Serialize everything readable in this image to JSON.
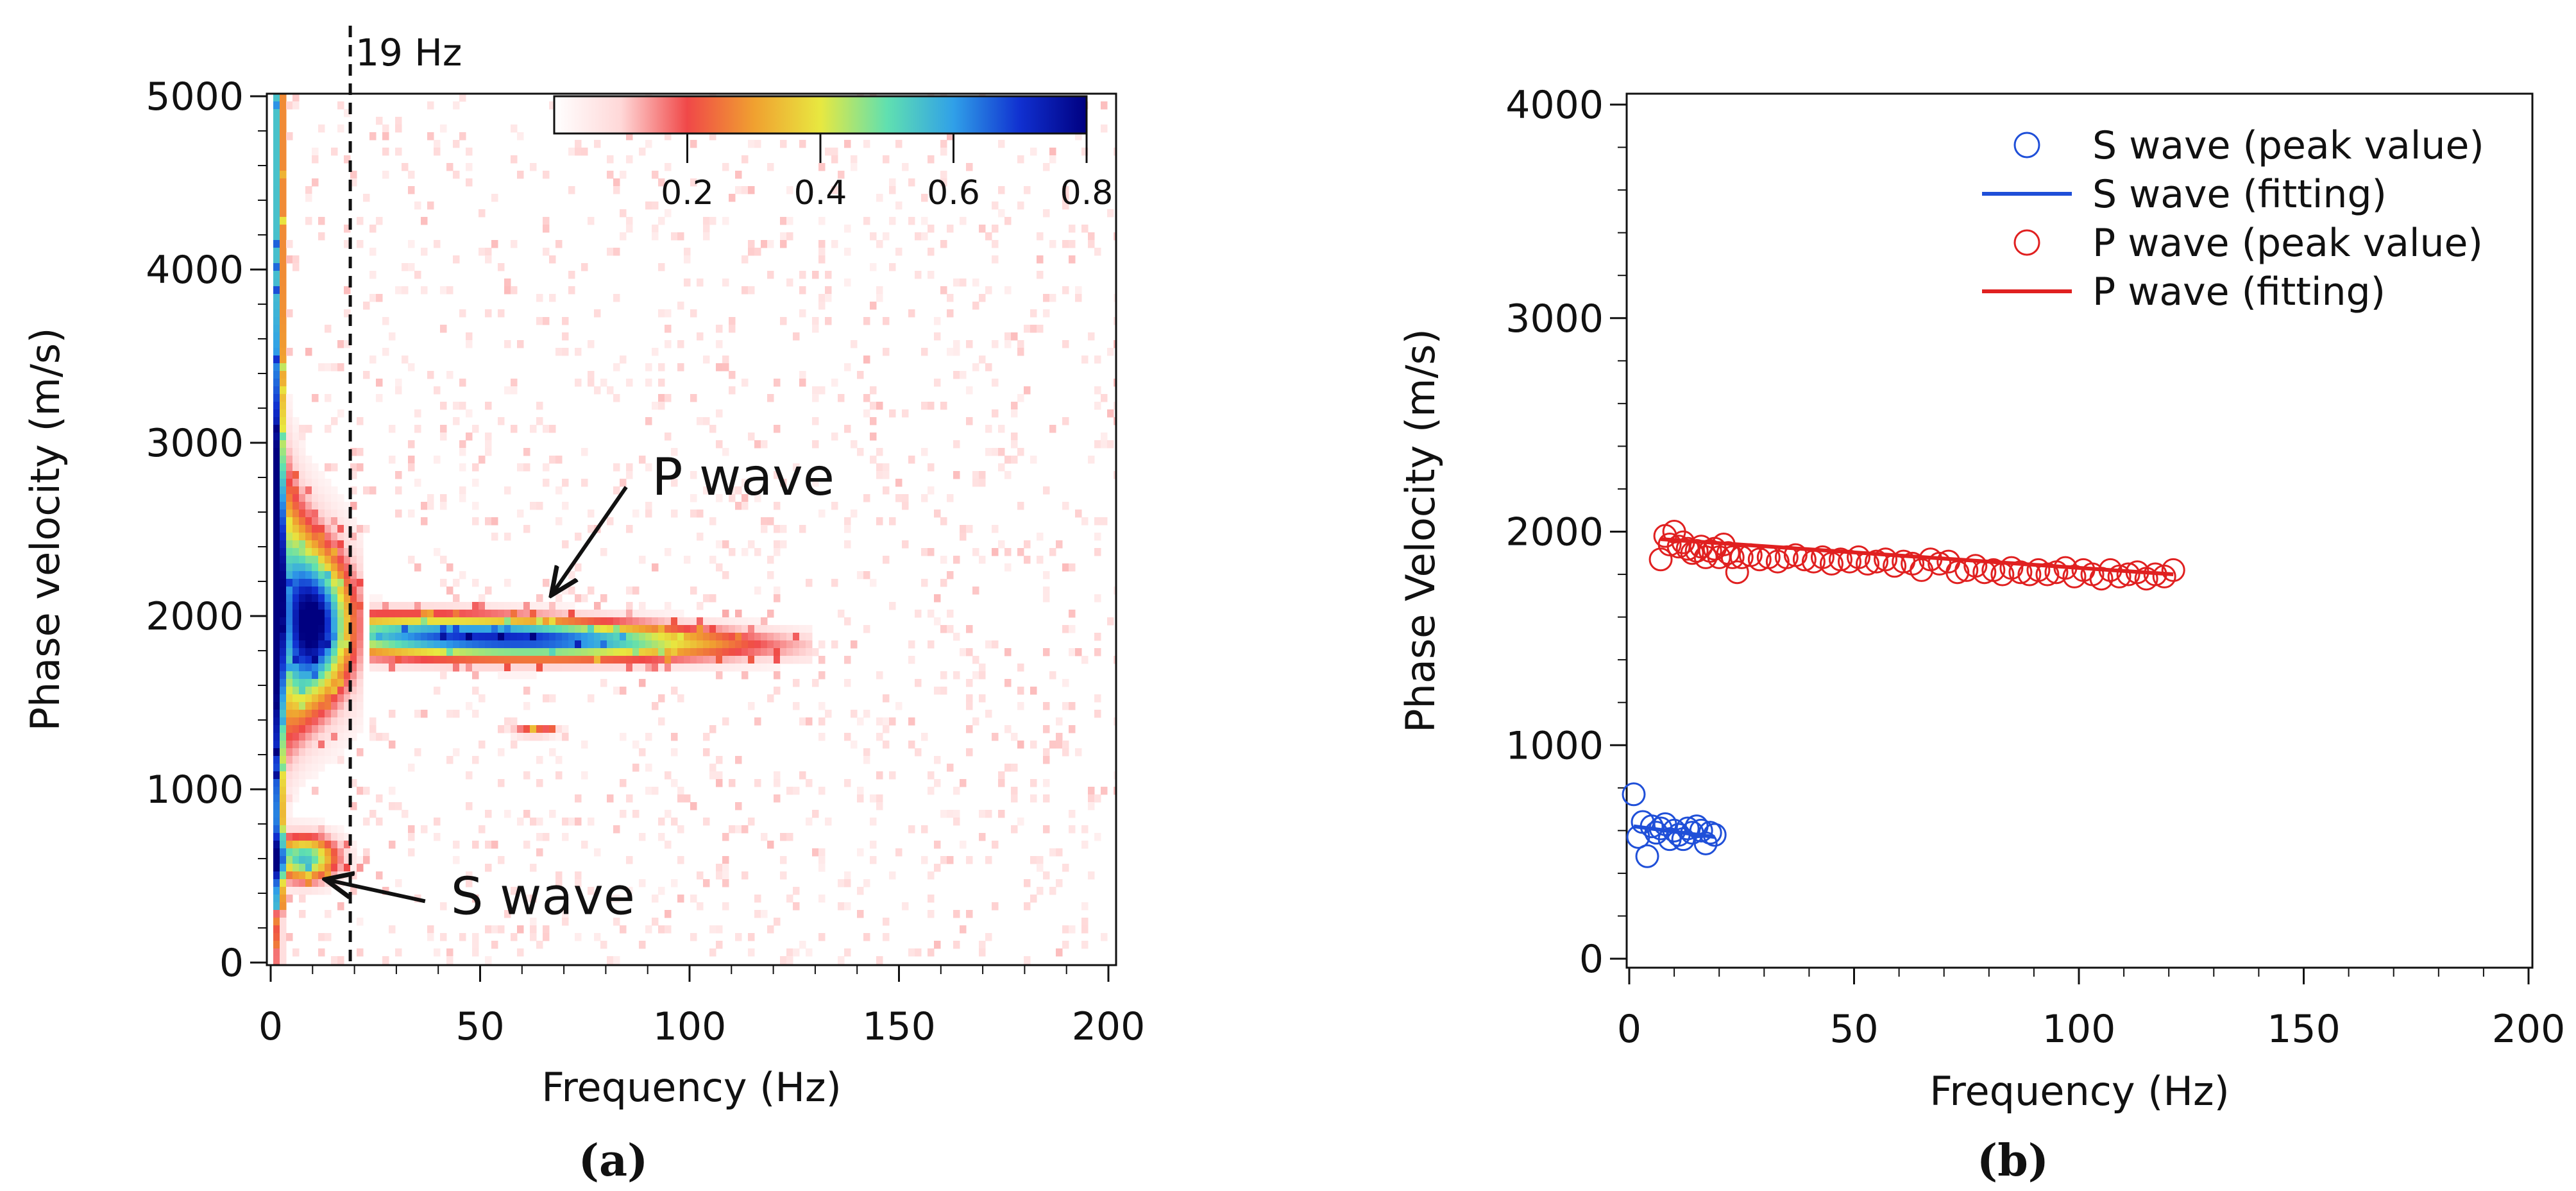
{
  "chart_data": [
    {
      "type": "heatmap",
      "panel_label": "(a)",
      "xlabel": "Frequency (Hz)",
      "ylabel": "Phase velocity (m/s)",
      "xlim": [
        0,
        200
      ],
      "ylim": [
        0,
        5000
      ],
      "x_ticks": [
        0,
        50,
        100,
        150,
        200
      ],
      "y_ticks": [
        0,
        1000,
        2000,
        3000,
        4000,
        5000
      ],
      "colorbar": {
        "ticks": [
          0.2,
          0.4,
          0.6,
          0.8
        ],
        "range": [
          0.0,
          0.8
        ],
        "colors": [
          "#ffffff",
          "#ffd8d8",
          "#f04848",
          "#f0a030",
          "#e8e840",
          "#60e0b0",
          "#30a0e8",
          "#1030d0",
          "#000080"
        ]
      },
      "vertical_line": {
        "x": 19,
        "label": "19 Hz"
      },
      "annotations": [
        {
          "text": "P wave",
          "text_x": 91,
          "text_y": 2700,
          "arrow_to_x": 67,
          "arrow_to_y": 2120
        },
        {
          "text": "S wave",
          "text_x": 43,
          "text_y": 280,
          "arrow_to_x": 13,
          "arrow_to_y": 480
        }
      ],
      "features": [
        {
          "name": "P wave band",
          "x_range": [
            25,
            125
          ],
          "velocity": 1900
        },
        {
          "name": "S wave band",
          "x_range": [
            1,
            20
          ],
          "velocity": 600
        }
      ]
    },
    {
      "type": "scatter",
      "panel_label": "(b)",
      "xlabel": "Frequency (Hz)",
      "ylabel": "Phase Velocity (m/s)",
      "xlim": [
        0,
        200
      ],
      "ylim": [
        0,
        4000
      ],
      "x_ticks": [
        0,
        50,
        100,
        150,
        200
      ],
      "y_ticks": [
        0,
        1000,
        2000,
        3000,
        4000
      ],
      "legend_position": "top-right",
      "series": [
        {
          "name": "S wave (peak value)",
          "kind": "markers",
          "color": "#1f4fd8",
          "x": [
            1,
            2,
            3,
            4,
            5,
            6,
            7,
            8,
            9,
            10,
            11,
            12,
            13,
            14,
            15,
            16,
            17,
            18,
            19
          ],
          "y": [
            770,
            570,
            640,
            480,
            620,
            590,
            610,
            630,
            560,
            600,
            580,
            560,
            610,
            590,
            620,
            600,
            540,
            590,
            580
          ]
        },
        {
          "name": "S wave (fitting)",
          "kind": "line",
          "color": "#1f4fd8",
          "x": [
            1,
            19
          ],
          "y": [
            620,
            570
          ]
        },
        {
          "name": "P wave (peak value)",
          "kind": "markers",
          "color": "#e02020",
          "x": [
            7,
            8,
            9,
            10,
            11,
            12,
            13,
            14,
            15,
            16,
            17,
            18,
            19,
            20,
            21,
            22,
            23,
            24,
            25,
            27,
            29,
            31,
            33,
            35,
            37,
            39,
            41,
            43,
            45,
            47,
            49,
            51,
            53,
            55,
            57,
            59,
            61,
            63,
            65,
            67,
            69,
            71,
            73,
            75,
            77,
            79,
            81,
            83,
            85,
            87,
            89,
            91,
            93,
            95,
            97,
            99,
            101,
            103,
            105,
            107,
            109,
            111,
            113,
            115,
            117,
            119,
            121
          ],
          "y": [
            1870,
            1980,
            1940,
            2000,
            1930,
            1950,
            1920,
            1900,
            1910,
            1930,
            1880,
            1910,
            1920,
            1880,
            1940,
            1900,
            1880,
            1810,
            1880,
            1890,
            1870,
            1880,
            1860,
            1880,
            1890,
            1870,
            1860,
            1880,
            1850,
            1870,
            1860,
            1880,
            1850,
            1860,
            1870,
            1840,
            1860,
            1850,
            1820,
            1870,
            1850,
            1860,
            1810,
            1820,
            1840,
            1810,
            1820,
            1800,
            1830,
            1810,
            1800,
            1820,
            1800,
            1810,
            1830,
            1790,
            1820,
            1800,
            1780,
            1820,
            1790,
            1800,
            1810,
            1780,
            1800,
            1790,
            1820
          ]
        },
        {
          "name": "P wave (fitting)",
          "kind": "line",
          "color": "#e02020",
          "x": [
            7,
            121
          ],
          "y": [
            1965,
            1800
          ]
        }
      ]
    }
  ]
}
